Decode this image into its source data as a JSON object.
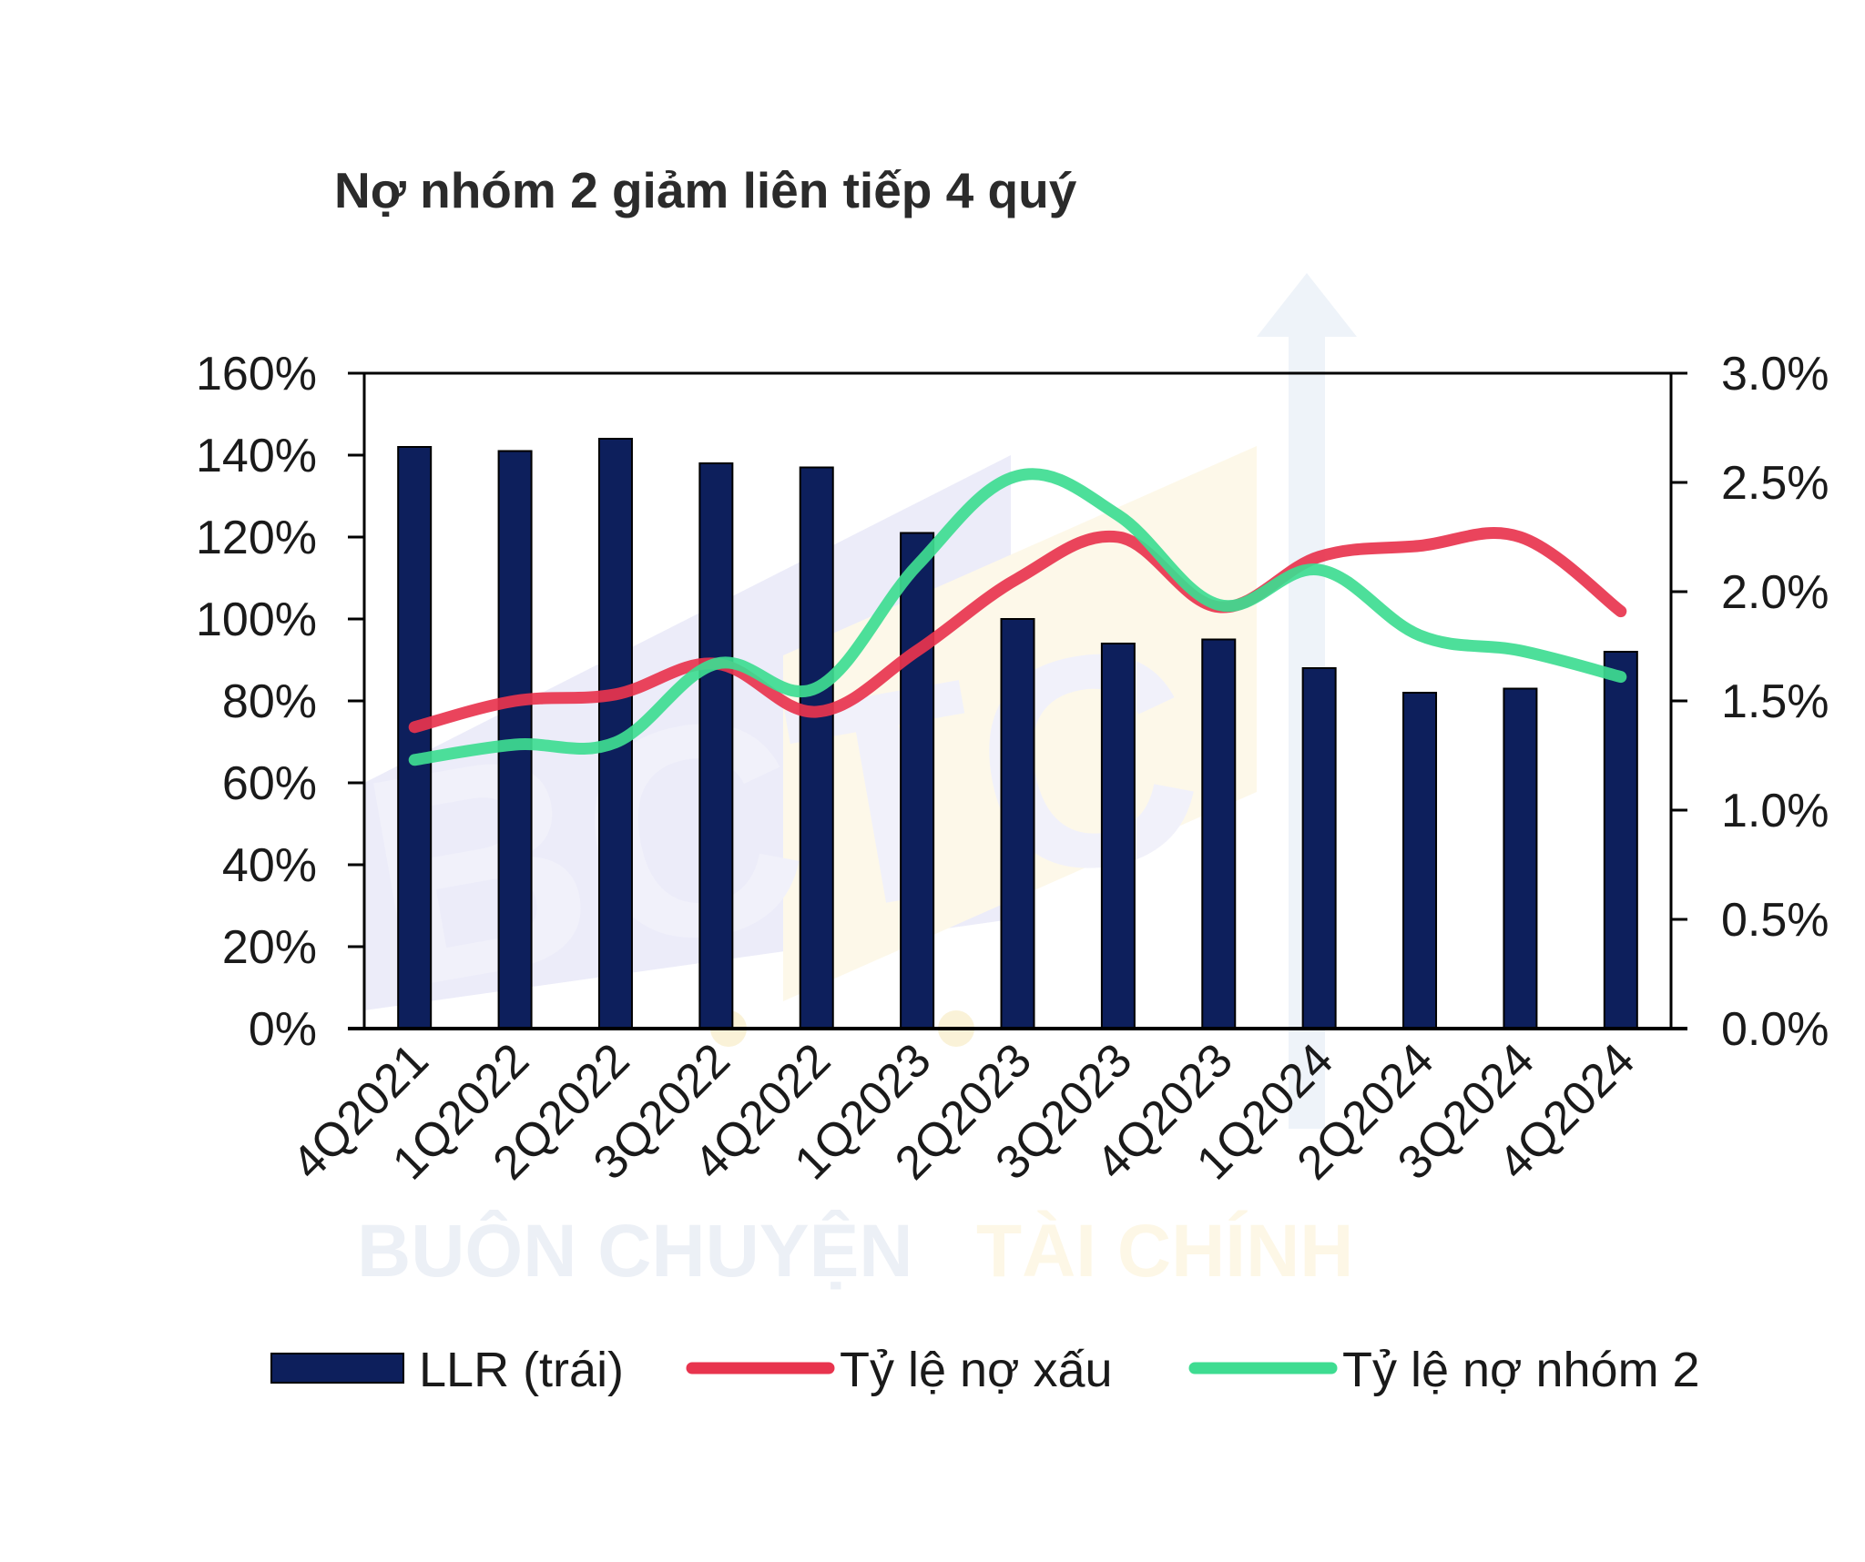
{
  "chart_data": {
    "type": "bar",
    "title": "Nợ nhóm 2 giảm liên tiếp 4 quý",
    "categories": [
      "4Q2021",
      "1Q2022",
      "2Q2022",
      "3Q2022",
      "4Q2022",
      "1Q2023",
      "2Q2023",
      "3Q2023",
      "4Q2023",
      "1Q2024",
      "2Q2024",
      "3Q2024",
      "4Q2024"
    ],
    "series": [
      {
        "name": "LLR (trái)",
        "kind": "bar",
        "axis": "left",
        "color": "#0d1f5c",
        "values": [
          142,
          141,
          144,
          138,
          137,
          121,
          100,
          94,
          95,
          88,
          82,
          83,
          92
        ]
      },
      {
        "name": "Tỷ lệ nợ xấu",
        "kind": "line",
        "axis": "right",
        "color": "#e8344e",
        "values": [
          1.38,
          1.5,
          1.53,
          1.67,
          1.45,
          1.73,
          2.06,
          2.25,
          1.93,
          2.16,
          2.21,
          2.25,
          1.91
        ]
      },
      {
        "name": "Tỷ lệ nợ nhóm 2",
        "kind": "line",
        "axis": "right",
        "color": "#3edc91",
        "values": [
          1.23,
          1.3,
          1.31,
          1.67,
          1.56,
          2.12,
          2.53,
          2.35,
          1.94,
          2.1,
          1.8,
          1.73,
          1.61
        ]
      }
    ],
    "y_left": {
      "min": 0,
      "max": 160,
      "step": 20,
      "suffix": "%",
      "decimals": 0
    },
    "y_right": {
      "min": 0,
      "max": 3.0,
      "step": 0.5,
      "suffix": "%",
      "decimals": 1
    },
    "grid": false,
    "legend_position": "bottom",
    "watermark": {
      "logo_text": "BCTC",
      "brand_left": "BUÔN CHUYỆN",
      "brand_right": "TÀI CHÍNH"
    }
  }
}
